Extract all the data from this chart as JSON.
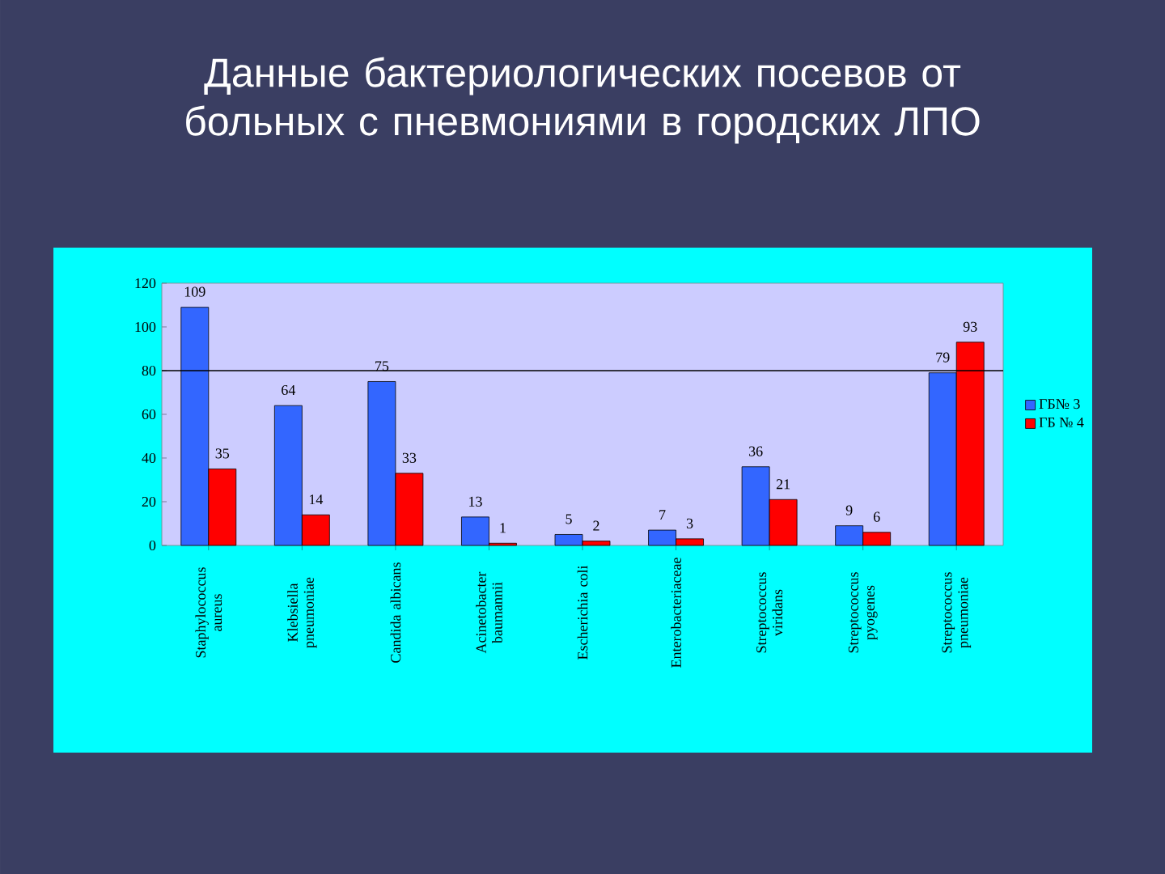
{
  "chart_data": {
    "type": "bar",
    "title": "Данные бактериологических посевов от больных с пневмониями в городских ЛПО",
    "categories": [
      "Staphylococcus aureus",
      "Klebsiella pneumoniae",
      "Candida albicans",
      "Acinetobacter baumannii",
      "Escherichia coli",
      "Enterobacteriaceae",
      "Streptococcus viridans",
      "Streptococcus pyogenes",
      "Streptococcus pneumoniae"
    ],
    "series": [
      {
        "name": "ГБ№ 3",
        "color": "#3366ff",
        "values": [
          109,
          64,
          75,
          13,
          5,
          7,
          36,
          9,
          79
        ]
      },
      {
        "name": "ГБ № 4",
        "color": "#ff0000",
        "values": [
          35,
          14,
          33,
          1,
          2,
          3,
          21,
          6,
          93
        ]
      }
    ],
    "ylim": [
      0,
      120
    ],
    "yticks": [
      0,
      20,
      40,
      60,
      80,
      100,
      120
    ],
    "ref_lines": [
      {
        "axis": "y",
        "value": 80,
        "color": "#000000"
      }
    ],
    "data_labels": true,
    "legend": "right",
    "grid": false
  }
}
